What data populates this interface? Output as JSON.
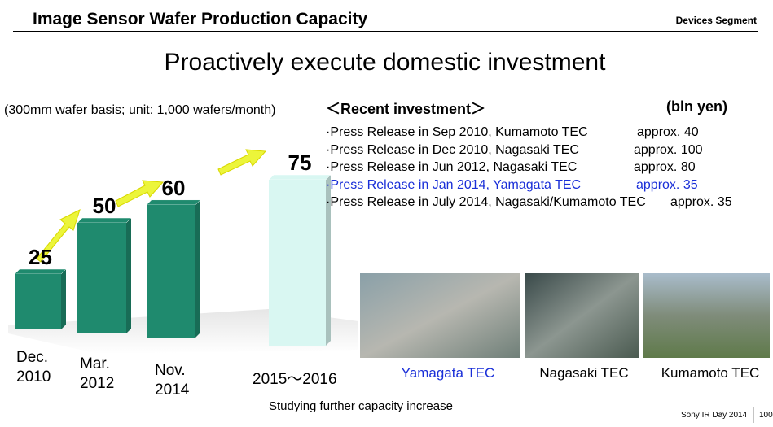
{
  "header": {
    "title": "Image Sensor Wafer Production Capacity",
    "segment": "Devices Segment"
  },
  "headline": "Proactively execute domestic investment",
  "chart_data": {
    "type": "bar",
    "subtitle": "(300mm wafer basis; unit: 1,000 wafers/month)",
    "categories": [
      "Dec. 2010",
      "Mar. 2012",
      "Nov. 2014",
      "2015～2016"
    ],
    "values": [
      25,
      50,
      60,
      75
    ],
    "colors": [
      "#1f8a6e",
      "#1f8a6e",
      "#1f8a6e",
      "#d9f7f2"
    ],
    "note": "Studying further capacity increase"
  },
  "investment": {
    "title": "＜Recent investment＞",
    "unit": "(bln yen)",
    "items": [
      {
        "text": "·Press Release in Sep 2010, Kumamoto TEC",
        "amount": "approx. 40"
      },
      {
        "text": "·Press Release in Dec 2010, Nagasaki TEC",
        "amount": "approx. 100"
      },
      {
        "text": "·Press Release in Jun 2012,  Nagasaki TEC",
        "amount": "approx. 80"
      },
      {
        "text": "·Press Release in Jan 2014,  Yamagata TEC",
        "amount": "approx. 35"
      },
      {
        "text": "·Press Release in July 2014,  Nagasaki/Kumamoto TEC",
        "amount": "approx. 35"
      }
    ]
  },
  "photos": [
    "Yamagata TEC",
    "Nagasaki TEC",
    "Kumamoto TEC"
  ],
  "footer": {
    "event": "Sony IR Day 2014",
    "page": "100"
  }
}
